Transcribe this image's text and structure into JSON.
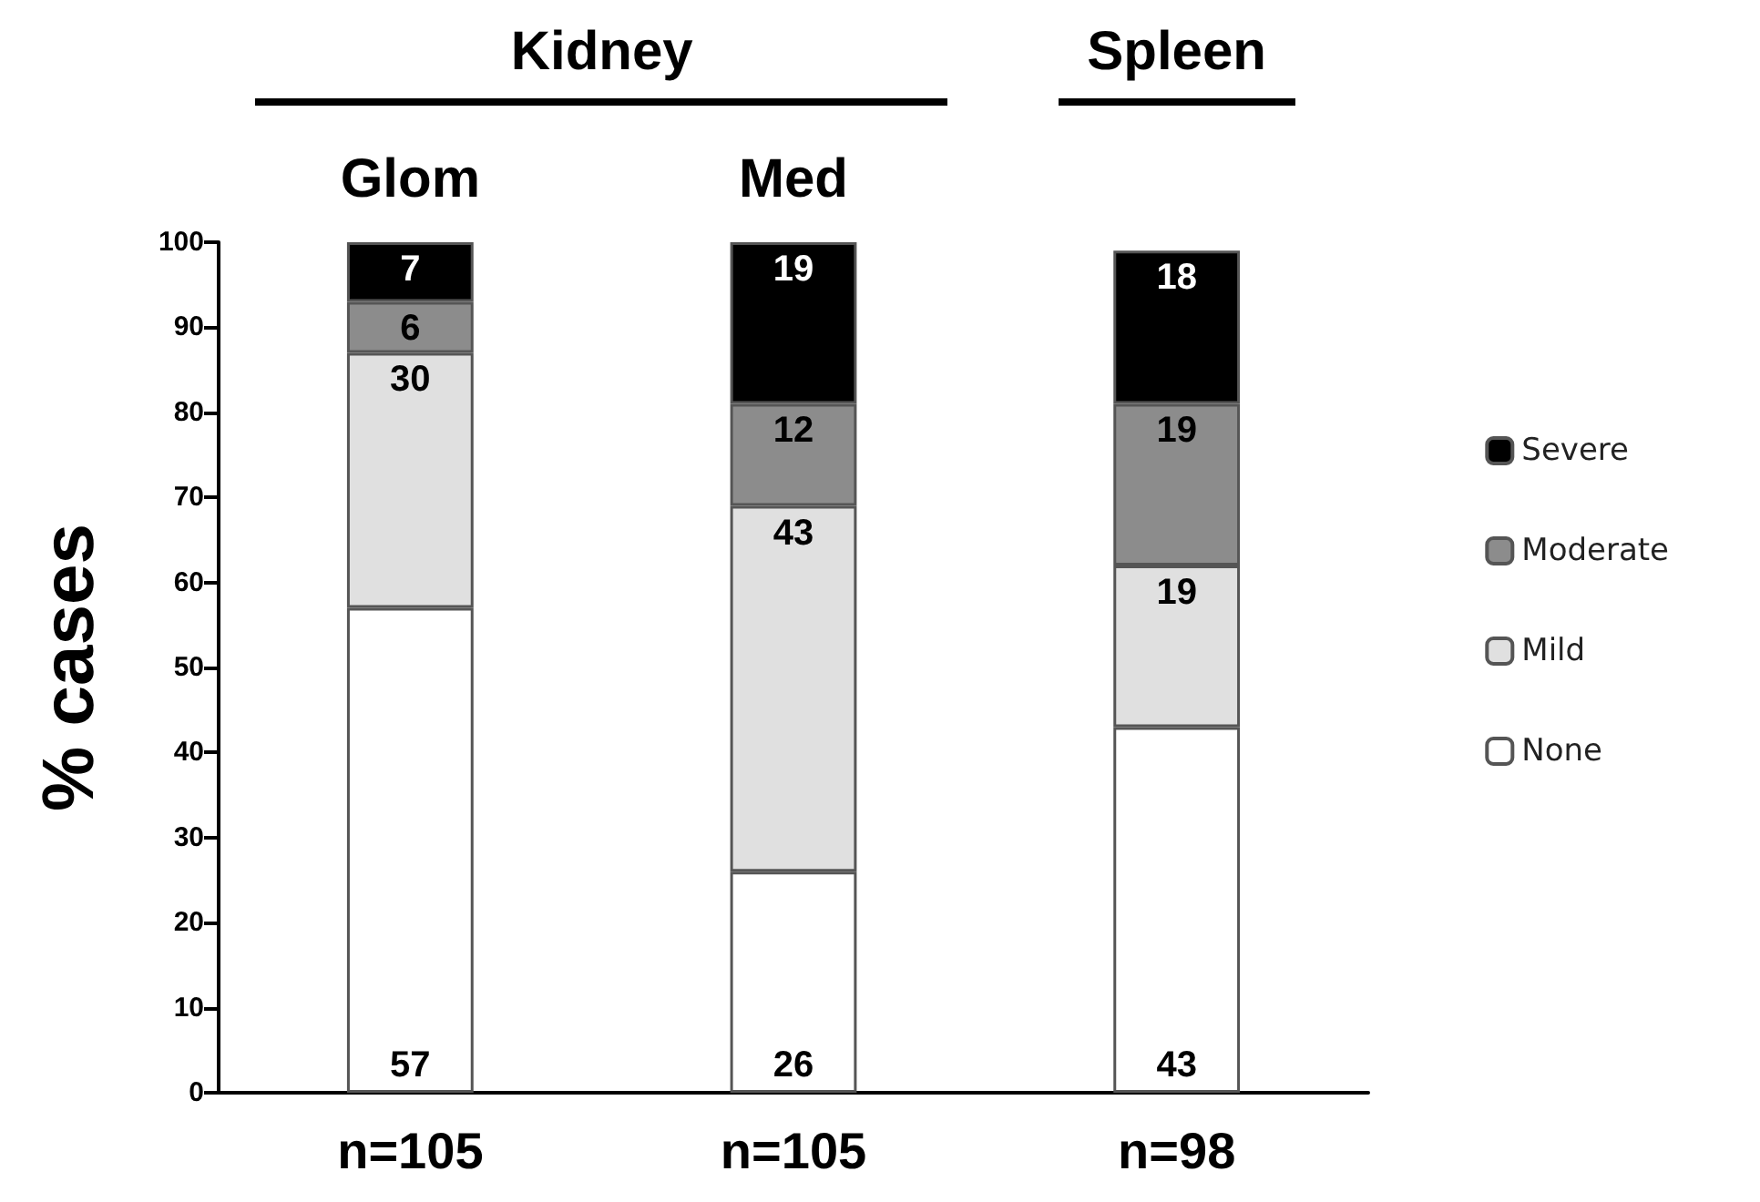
{
  "chart_data": {
    "type": "bar",
    "stacked": true,
    "categories": [
      "n=105",
      "n=105",
      "n=98"
    ],
    "ylabel": "% cases",
    "annotations": [
      "Kidney",
      "Spleen",
      "Glom",
      "Med"
    ],
    "series": [
      {
        "name": "None",
        "color": "#ffffff",
        "values": [
          57,
          26,
          43
        ]
      },
      {
        "name": "Mild",
        "color": "#e0e0e0",
        "values": [
          30,
          43,
          19
        ]
      },
      {
        "name": "Moderate",
        "color": "#8c8c8c",
        "values": [
          6,
          12,
          19
        ]
      },
      {
        "name": "Severe",
        "color": "#000000",
        "values": [
          7,
          19,
          18
        ]
      }
    ],
    "ylim": [
      0,
      100
    ],
    "yticks": [
      0,
      10,
      20,
      30,
      40,
      50,
      60,
      70,
      80,
      90,
      100
    ],
    "data_labels": true,
    "grid": false,
    "legend": "right"
  }
}
